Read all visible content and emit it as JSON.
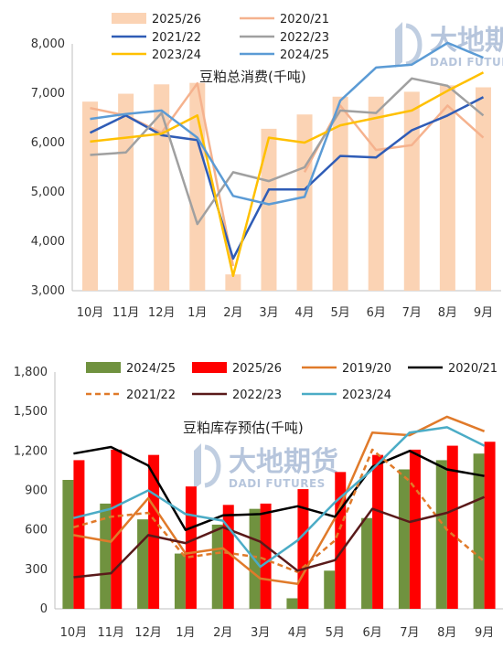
{
  "watermark": {
    "cn": "大地期货",
    "en": "DADI FUTURES"
  },
  "chart_data": [
    {
      "type": "bar+line",
      "title": "豆粕总消费(千吨)",
      "categories": [
        "10月",
        "11月",
        "12月",
        "1月",
        "2月",
        "3月",
        "4月",
        "5月",
        "6月",
        "7月",
        "8月",
        "9月"
      ],
      "ylim": [
        3000,
        8000
      ],
      "yticks": [
        "3,000",
        "4,000",
        "5,000",
        "6,000",
        "7,000",
        "8,000"
      ],
      "legend_placement": "top",
      "grid": false,
      "series": [
        {
          "name": "2025/26",
          "kind": "bar",
          "color": "#fbd3b4",
          "values": [
            6830,
            6990,
            7180,
            7210,
            3330,
            6280,
            6570,
            6930,
            6930,
            7030,
            7160,
            7120
          ]
        },
        {
          "name": "2020/21",
          "kind": "line",
          "color": "#f5b28e",
          "values": [
            6700,
            6550,
            6200,
            7200,
            3500,
            null,
            5400,
            6750,
            5850,
            5950,
            6750,
            6100
          ]
        },
        {
          "name": "2021/22",
          "kind": "line",
          "color": "#2f5cb6",
          "values": [
            6200,
            6550,
            6150,
            6050,
            3650,
            5050,
            5050,
            5730,
            5700,
            6250,
            6550,
            6920
          ]
        },
        {
          "name": "2022/23",
          "kind": "line",
          "color": "#a0a0a0",
          "values": [
            5750,
            5800,
            6600,
            4350,
            5400,
            5220,
            5500,
            6650,
            6600,
            7300,
            7150,
            6550
          ]
        },
        {
          "name": "2023/24",
          "kind": "line",
          "color": "#ffc000",
          "values": [
            6020,
            6100,
            6180,
            6550,
            3300,
            6100,
            6000,
            6350,
            6500,
            6650,
            7050,
            7420
          ]
        },
        {
          "name": "2024/25",
          "kind": "line",
          "color": "#5b9bd5",
          "values": [
            6480,
            6580,
            6650,
            6100,
            4920,
            4750,
            4900,
            6850,
            7520,
            7580,
            8020,
            7720
          ]
        }
      ]
    },
    {
      "type": "bar+line",
      "title": "豆粕库存预估(千吨)",
      "categories": [
        "10月",
        "11月",
        "12月",
        "1月",
        "2月",
        "3月",
        "4月",
        "5月",
        "6月",
        "7月",
        "8月",
        "9月"
      ],
      "ylim": [
        0,
        1800
      ],
      "yticks": [
        "0",
        "300",
        "600",
        "900",
        "1,200",
        "1,500",
        "1,800"
      ],
      "legend_placement": "top",
      "grid": false,
      "series": [
        {
          "name": "2024/25",
          "kind": "bar",
          "color": "#70923f",
          "values": [
            980,
            800,
            680,
            420,
            640,
            760,
            80,
            290,
            690,
            1060,
            1130,
            1180
          ]
        },
        {
          "name": "2025/26",
          "kind": "bar",
          "color": "#ff0000",
          "values": [
            1130,
            1210,
            1170,
            930,
            790,
            800,
            910,
            1040,
            1170,
            1210,
            1240,
            1270
          ]
        },
        {
          "name": "2019/20",
          "kind": "line",
          "color": "#e07a2a",
          "dash": false,
          "values": [
            560,
            510,
            840,
            420,
            460,
            230,
            190,
            690,
            1340,
            1320,
            1460,
            1350
          ]
        },
        {
          "name": "2020/21",
          "kind": "line",
          "color": "#000000",
          "dash": false,
          "values": [
            1180,
            1230,
            1090,
            600,
            710,
            720,
            780,
            700,
            1080,
            1200,
            1060,
            1010
          ]
        },
        {
          "name": "2021/22",
          "kind": "line",
          "color": "#e07a2a",
          "dash": true,
          "values": [
            620,
            700,
            730,
            390,
            430,
            390,
            280,
            520,
            1210,
            970,
            600,
            360
          ]
        },
        {
          "name": "2022/23",
          "kind": "line",
          "color": "#5a1a1a",
          "dash": false,
          "values": [
            240,
            270,
            560,
            500,
            620,
            510,
            290,
            370,
            760,
            660,
            730,
            850
          ]
        },
        {
          "name": "2023/24",
          "kind": "line",
          "color": "#4bacc6",
          "dash": false,
          "values": [
            690,
            760,
            900,
            720,
            670,
            320,
            520,
            810,
            1060,
            1340,
            1380,
            1240
          ]
        }
      ]
    }
  ]
}
